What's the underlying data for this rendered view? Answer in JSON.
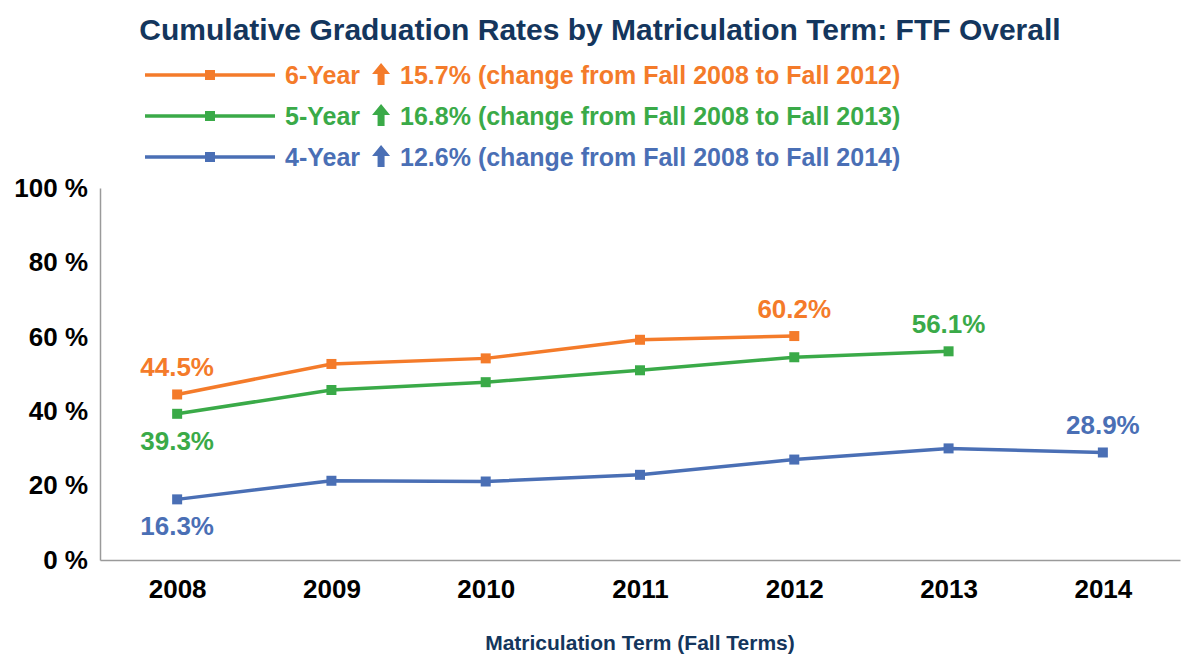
{
  "chart_data": {
    "type": "line",
    "title": "Cumulative Graduation Rates by Matriculation Term: FTF Overall",
    "x_label": "Matriculation Term (Fall Terms)",
    "categories": [
      "2008",
      "2009",
      "2010",
      "2011",
      "2012",
      "2013",
      "2014"
    ],
    "series": [
      {
        "name": "6-Year",
        "color": "#f47b2a",
        "marker": "square",
        "line_style": "solid",
        "values": [
          44.5,
          52.7,
          54.2,
          59.2,
          60.2,
          null,
          null
        ],
        "value_labels": [
          "44.5%",
          null,
          null,
          null,
          "60.2%",
          null,
          null
        ]
      },
      {
        "name": "5-Year",
        "color": "#3aaa48",
        "marker": "square",
        "line_style": "solid",
        "values": [
          39.3,
          45.7,
          47.8,
          51.0,
          54.5,
          56.1,
          null
        ],
        "value_labels": [
          "39.3%",
          null,
          null,
          null,
          null,
          "56.1%",
          null
        ]
      },
      {
        "name": "4-Year",
        "color": "#4a6fb5",
        "marker": "square",
        "line_style": "solid",
        "values": [
          16.3,
          21.3,
          21.1,
          22.9,
          27.0,
          30.0,
          28.9
        ],
        "value_labels": [
          "16.3%",
          null,
          null,
          null,
          null,
          null,
          "28.9%"
        ]
      }
    ],
    "annotations": [
      "15.7% (change from Fall 2008 to Fall 2012)",
      "16.8% (change from Fall 2008 to Fall 2013)",
      "12.6% (change from Fall 2008 to Fall 2014)"
    ],
    "ylim": [
      0,
      100
    ],
    "yticks": [
      {
        "value": 0,
        "label": "0 %"
      },
      {
        "value": 20,
        "label": "20 %"
      },
      {
        "value": 40,
        "label": "40 %"
      },
      {
        "value": 60,
        "label": "60 %"
      },
      {
        "value": 80,
        "label": "80 %"
      },
      {
        "value": 100,
        "label": "100 %"
      }
    ],
    "grid": false,
    "legend": "top",
    "data_labels": true
  }
}
